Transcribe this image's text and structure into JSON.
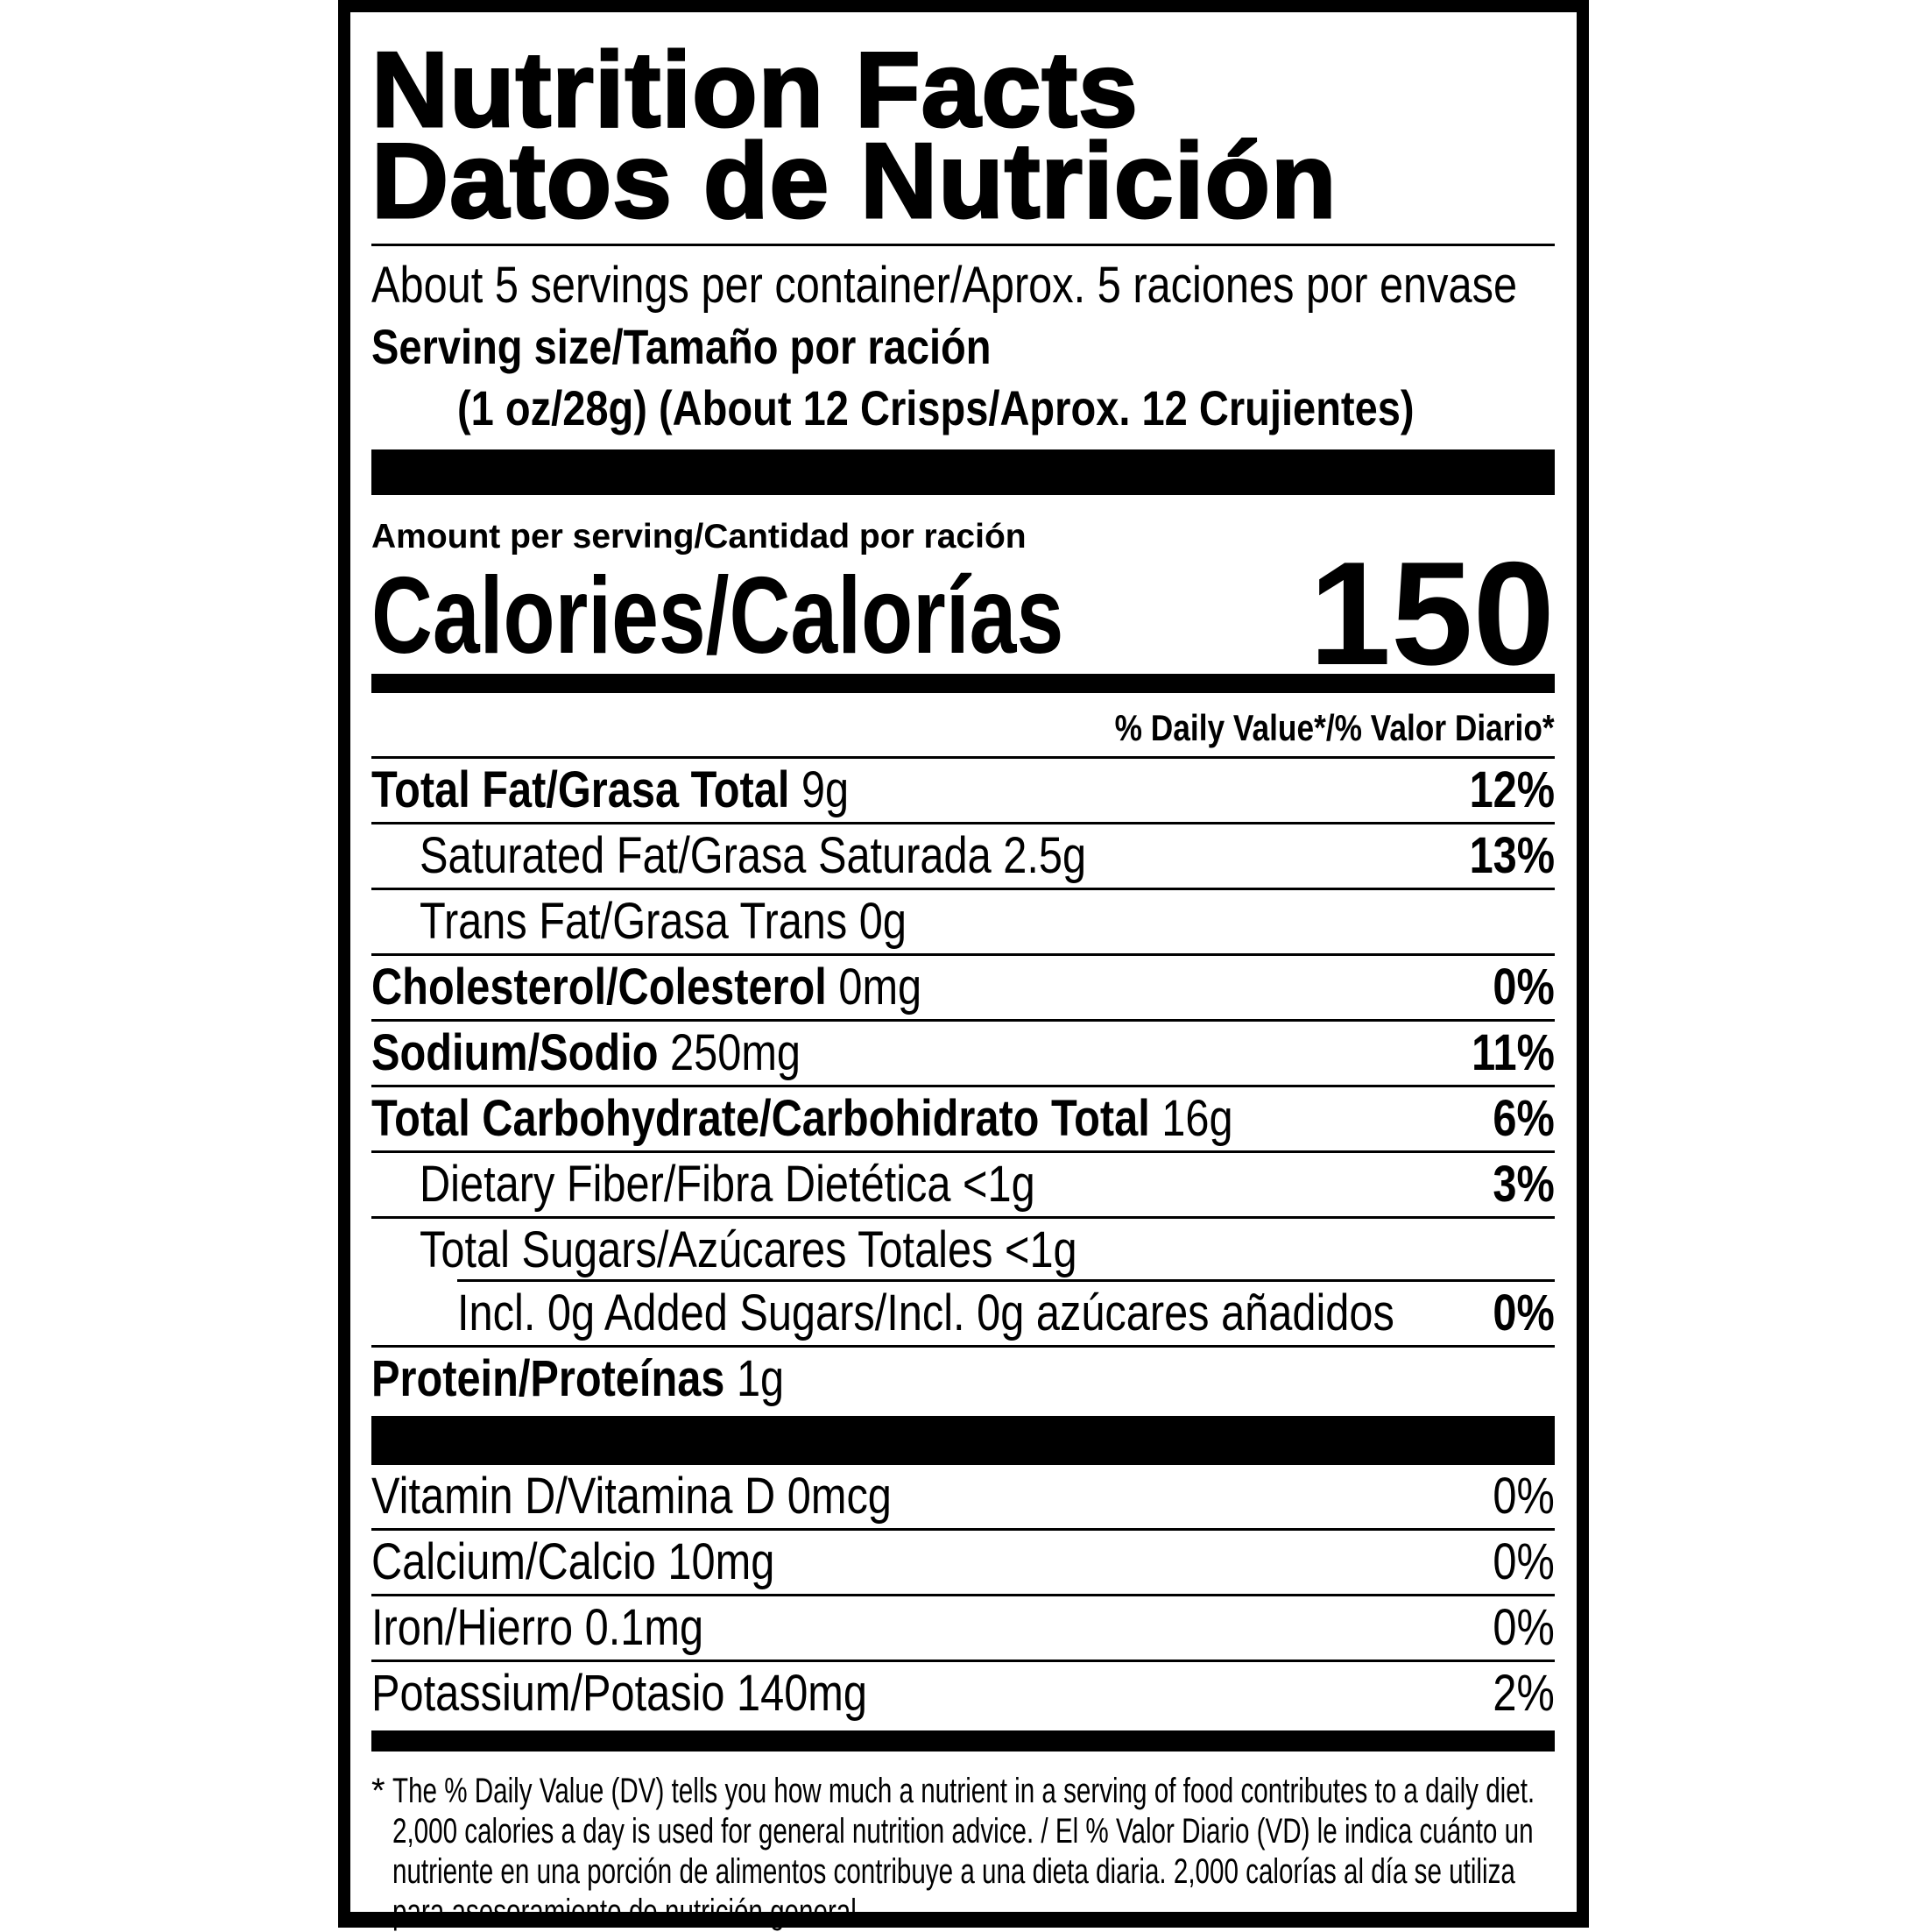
{
  "title": {
    "line1": "Nutrition Facts",
    "line2": "Datos de Nutrición"
  },
  "servings_per_container": "About 5 servings per container/Aprox. 5 raciones por envase",
  "serving_size": {
    "label": "Serving size/Tamaño por ración",
    "value": "(1 oz/28g) (About 12 Crisps/Aprox. 12 Crujientes)"
  },
  "amount_per_serving": "Amount per serving/Cantidad por ración",
  "calories": {
    "label": "Calories/Calorías",
    "value": "150"
  },
  "daily_value_header": "% Daily Value*/% Valor Diario*",
  "nutrients": [
    {
      "name": "Total Fat/Grasa Total",
      "amount": "9g",
      "dv": "12%"
    },
    {
      "name": "Saturated Fat/Grasa Saturada",
      "amount": "2.5g",
      "dv": "13%"
    },
    {
      "name": "Trans Fat/Grasa Trans",
      "amount": "0g",
      "dv": ""
    },
    {
      "name": "Cholesterol/Colesterol",
      "amount": "0mg",
      "dv": "0%"
    },
    {
      "name": "Sodium/Sodio",
      "amount": "250mg",
      "dv": "11%"
    },
    {
      "name": "Total Carbohydrate/Carbohidrato Total",
      "amount": "16g",
      "dv": "6%"
    },
    {
      "name": "Dietary Fiber/Fibra Dietética",
      "amount": "<1g",
      "dv": "3%"
    },
    {
      "name": "Total Sugars/Azúcares Totales",
      "amount": "<1g",
      "dv": ""
    },
    {
      "name": "Incl. 0g Added Sugars/Incl. 0g azúcares añadidos",
      "amount": "",
      "dv": "0%"
    },
    {
      "name": "Protein/Proteínas",
      "amount": "1g",
      "dv": ""
    }
  ],
  "vitamins": [
    {
      "name": "Vitamin D/Vitamina D 0mcg",
      "dv": "0%"
    },
    {
      "name": "Calcium/Calcio 10mg",
      "dv": "0%"
    },
    {
      "name": "Iron/Hierro 0.1mg",
      "dv": "0%"
    },
    {
      "name": "Potassium/Potasio 140mg",
      "dv": "2%"
    }
  ],
  "footnote": {
    "star": "*",
    "text": "The % Daily Value (DV) tells you how much a nutrient in a serving of food contributes to a daily diet. 2,000 calories a day is used for general nutrition advice. / El % Valor Diario (VD) le indica cuánto un nutriente en una porción de alimentos contribuye a una dieta diaria. 2,000 calorías al día se utiliza para asesoramiento de nutrición general."
  },
  "colors": {
    "ink": "#000000",
    "background": "#ffffff"
  }
}
